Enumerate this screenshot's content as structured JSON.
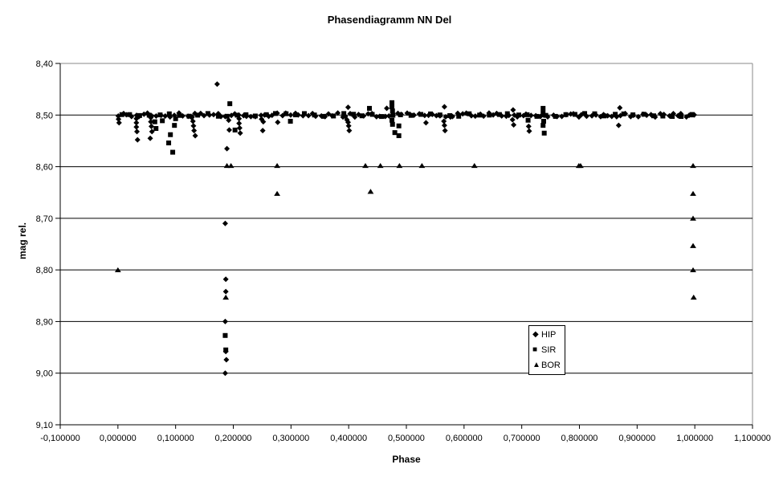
{
  "title": "Phasendiagramm NN Del",
  "chart_data": {
    "type": "scatter",
    "title": "Phasendiagramm NN Del",
    "xlabel": "Phase",
    "ylabel": "mag rel.",
    "xlim": [
      -0.1,
      1.1
    ],
    "ylim": [
      8.4,
      9.1
    ],
    "y_axis_direction": "magnitude-down (8.40 at top, 9.10 at bottom)",
    "grid": "horizontal",
    "x_ticks": [
      -0.1,
      0.0,
      0.1,
      0.2,
      0.3,
      0.4,
      0.5,
      0.6,
      0.7,
      0.8,
      0.9,
      1.0,
      1.1
    ],
    "x_tick_labels": [
      "-0,100000",
      "0,000000",
      "0,100000",
      "0,200000",
      "0,300000",
      "0,400000",
      "0,500000",
      "0,600000",
      "0,700000",
      "0,800000",
      "0,900000",
      "1,000000",
      "1,100000"
    ],
    "y_ticks": [
      8.4,
      8.5,
      8.6,
      8.7,
      8.8,
      8.9,
      9.0,
      9.1
    ],
    "y_tick_labels": [
      "8,40",
      "8,50",
      "8,60",
      "8,70",
      "8,80",
      "8,90",
      "9,00",
      "9,10"
    ],
    "colors": {
      "marker": "#000000",
      "grid": "#000000",
      "plot_border": "#888888",
      "background": "#ffffff"
    },
    "legend": {
      "position": "inside-right",
      "items": [
        {
          "label": "HIP",
          "marker": "diamond",
          "glyph": "◆"
        },
        {
          "label": "SIR",
          "marker": "square",
          "glyph": "■"
        },
        {
          "label": "BOR",
          "marker": "triangle",
          "glyph": "▲"
        }
      ]
    },
    "series": [
      {
        "name": "HIP",
        "marker": "diamond",
        "band": {
          "description": "dense out-of-eclipse band of overlapping points",
          "phase_from": 0.001,
          "phase_to": 0.999,
          "count": 135,
          "mag_center": 8.5,
          "mag_jitter": 0.004
        },
        "points": [
          [
            0.001,
            8.508
          ],
          [
            0.002,
            8.515
          ],
          [
            0.172,
            8.44
          ],
          [
            0.399,
            8.485
          ],
          [
            0.466,
            8.487
          ],
          [
            0.566,
            8.484
          ],
          [
            0.685,
            8.49
          ],
          [
            0.87,
            8.486
          ],
          [
            0.032,
            8.507
          ],
          [
            0.032,
            8.515
          ],
          [
            0.032,
            8.523
          ],
          [
            0.033,
            8.532
          ],
          [
            0.034,
            8.548
          ],
          [
            0.057,
            8.505
          ],
          [
            0.057,
            8.513
          ],
          [
            0.058,
            8.522
          ],
          [
            0.059,
            8.532
          ],
          [
            0.056,
            8.545
          ],
          [
            0.128,
            8.505
          ],
          [
            0.13,
            8.512
          ],
          [
            0.131,
            8.521
          ],
          [
            0.132,
            8.53
          ],
          [
            0.134,
            8.54
          ],
          [
            0.21,
            8.507
          ],
          [
            0.21,
            8.516
          ],
          [
            0.211,
            8.525
          ],
          [
            0.212,
            8.535
          ],
          [
            0.192,
            8.51
          ],
          [
            0.193,
            8.529
          ],
          [
            0.189,
            8.565
          ],
          [
            0.249,
            8.508
          ],
          [
            0.252,
            8.513
          ],
          [
            0.251,
            8.53
          ],
          [
            0.277,
            8.514
          ],
          [
            0.397,
            8.509
          ],
          [
            0.399,
            8.514
          ],
          [
            0.4,
            8.521
          ],
          [
            0.401,
            8.53
          ],
          [
            0.534,
            8.515
          ],
          [
            0.565,
            8.512
          ],
          [
            0.566,
            8.52
          ],
          [
            0.567,
            8.53
          ],
          [
            0.684,
            8.509
          ],
          [
            0.686,
            8.519
          ],
          [
            0.712,
            8.522
          ],
          [
            0.713,
            8.531
          ],
          [
            0.868,
            8.52
          ],
          [
            0.186,
            8.71
          ],
          [
            0.187,
            8.818
          ],
          [
            0.187,
            8.842
          ],
          [
            0.186,
            8.9
          ],
          [
            0.187,
            8.958
          ],
          [
            0.188,
            8.974
          ],
          [
            0.186,
            9.0
          ]
        ]
      },
      {
        "name": "SIR",
        "marker": "square",
        "band": {
          "description": "dense out-of-eclipse band of overlapping points",
          "phase_from": 0.005,
          "phase_to": 0.995,
          "count": 60,
          "mag_center": 8.5,
          "mag_jitter": 0.003
        },
        "points": [
          [
            0.194,
            8.478
          ],
          [
            0.436,
            8.487
          ],
          [
            0.064,
            8.513
          ],
          [
            0.066,
            8.526
          ],
          [
            0.077,
            8.511
          ],
          [
            0.098,
            8.52
          ],
          [
            0.091,
            8.538
          ],
          [
            0.088,
            8.554
          ],
          [
            0.095,
            8.572
          ],
          [
            0.1,
            8.507
          ],
          [
            0.203,
            8.529
          ],
          [
            0.299,
            8.512
          ],
          [
            0.475,
            8.476
          ],
          [
            0.475,
            8.484
          ],
          [
            0.476,
            8.492
          ],
          [
            0.475,
            8.51
          ],
          [
            0.476,
            8.518
          ],
          [
            0.487,
            8.521
          ],
          [
            0.48,
            8.534
          ],
          [
            0.487,
            8.54
          ],
          [
            0.737,
            8.487
          ],
          [
            0.737,
            8.496
          ],
          [
            0.738,
            8.512
          ],
          [
            0.737,
            8.52
          ],
          [
            0.739,
            8.535
          ],
          [
            0.711,
            8.51
          ],
          [
            0.186,
            8.927
          ],
          [
            0.187,
            8.955
          ]
        ]
      },
      {
        "name": "BOR",
        "marker": "triangle",
        "points": [
          [
            0.0,
            8.8
          ],
          [
            0.189,
            8.598
          ],
          [
            0.196,
            8.598
          ],
          [
            0.187,
            8.853
          ],
          [
            0.276,
            8.598
          ],
          [
            0.276,
            8.652
          ],
          [
            0.429,
            8.598
          ],
          [
            0.455,
            8.598
          ],
          [
            0.438,
            8.648
          ],
          [
            0.488,
            8.598
          ],
          [
            0.527,
            8.598
          ],
          [
            0.618,
            8.598
          ],
          [
            0.799,
            8.598
          ],
          [
            0.802,
            8.598
          ],
          [
            0.995,
            8.5
          ],
          [
            0.997,
            8.598
          ],
          [
            0.997,
            8.652
          ],
          [
            0.997,
            8.7
          ],
          [
            0.997,
            8.753
          ],
          [
            0.997,
            8.8
          ],
          [
            0.998,
            8.853
          ]
        ]
      }
    ]
  }
}
